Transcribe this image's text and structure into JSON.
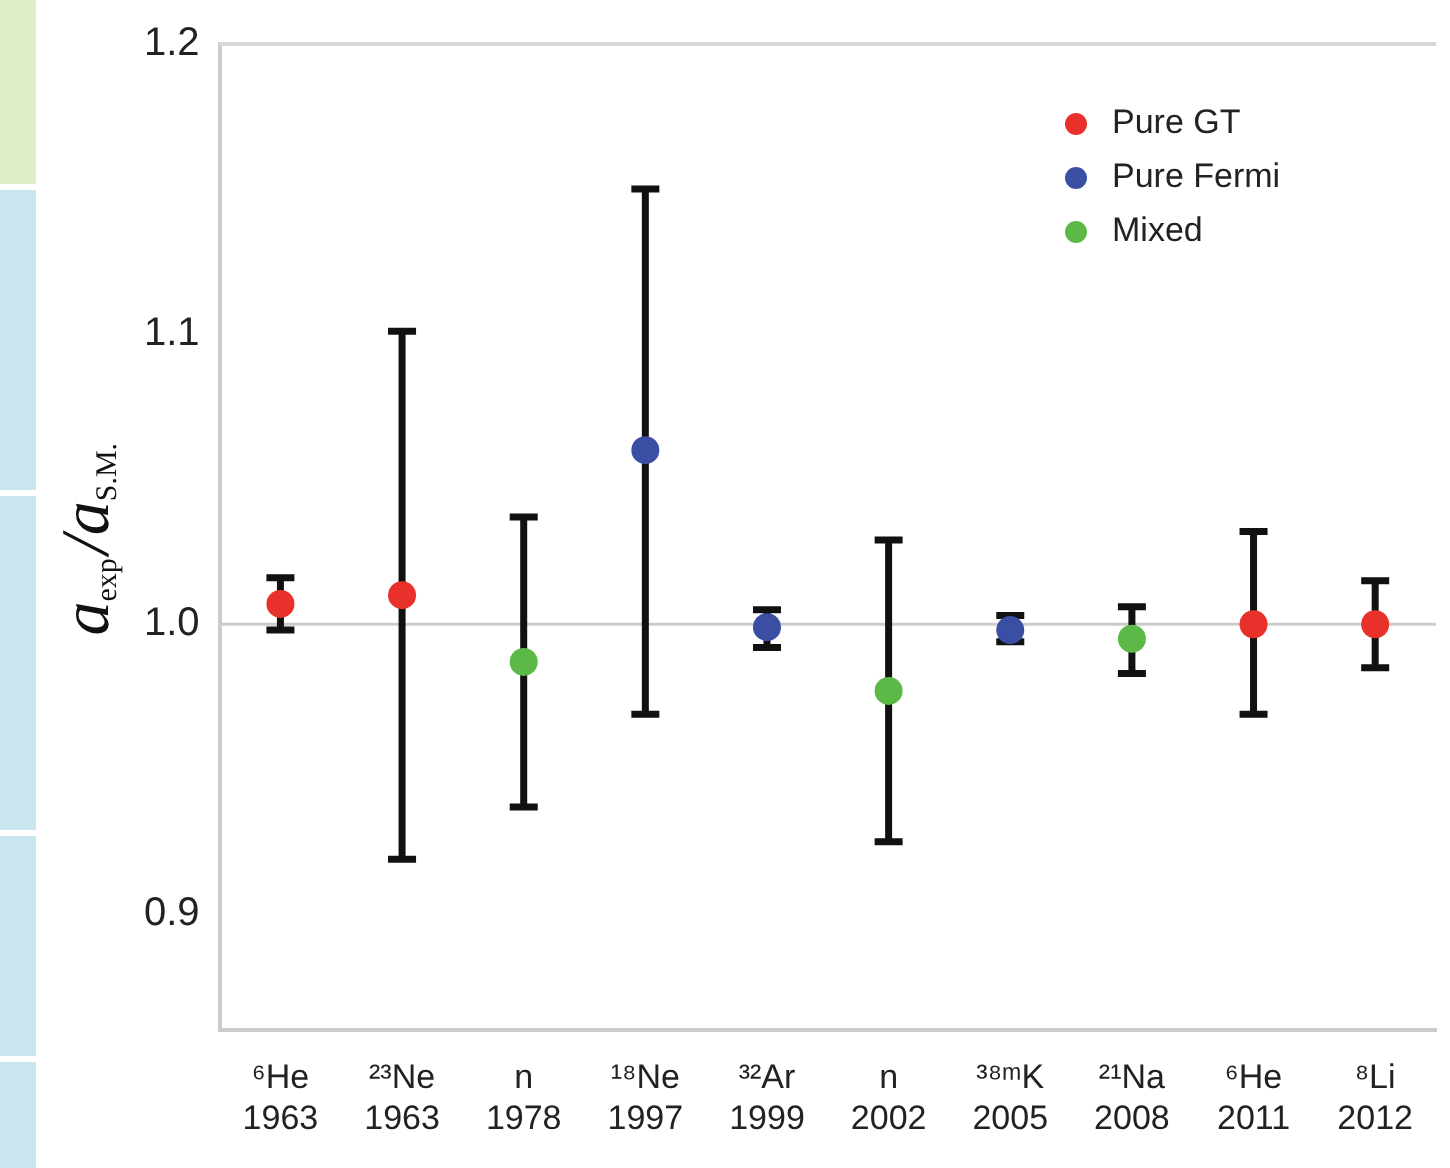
{
  "chart_data": {
    "type": "scatter",
    "ylabel": "a$_{exp}$/a$_{S.M.}$",
    "categories": [
      "⁶He\n1963",
      "²³Ne\n1963",
      "n\n1978",
      "¹⁸Ne\n1997",
      "³²Ar\n1999",
      "n\n2002",
      "³⁸ᵐK\n2005",
      "²¹Na\n2008",
      "⁶He\n2011",
      "⁸Li\n2012"
    ],
    "series": [
      {
        "name": "Pure GT",
        "color": "#e8312a",
        "values": [
          1.007,
          1.01,
          null,
          null,
          null,
          null,
          null,
          null,
          1.0,
          1.0
        ],
        "errors": [
          [
            0.998,
            1.016
          ],
          [
            0.919,
            1.101
          ],
          null,
          null,
          null,
          null,
          null,
          null,
          [
            0.969,
            1.032
          ],
          [
            0.985,
            1.015
          ]
        ]
      },
      {
        "name": "Pure Fermi",
        "color": "#3a4ea3",
        "values": [
          null,
          null,
          null,
          1.06,
          0.999,
          null,
          0.998,
          null,
          null,
          null
        ],
        "errors": [
          null,
          null,
          null,
          [
            0.969,
            1.15
          ],
          [
            0.992,
            1.005
          ],
          null,
          [
            0.994,
            1.003
          ],
          null,
          null,
          null
        ]
      },
      {
        "name": "Mixed",
        "color": "#5cb947",
        "values": [
          null,
          null,
          0.987,
          null,
          null,
          0.977,
          null,
          0.995,
          null,
          null
        ],
        "errors": [
          null,
          null,
          [
            0.937,
            1.037
          ],
          null,
          null,
          [
            0.925,
            1.029
          ],
          null,
          [
            0.983,
            1.006
          ],
          null,
          null
        ]
      }
    ],
    "ylim": [
      0.86,
      1.2
    ],
    "yticks": [
      0.9,
      {
        "value": 1,
        "label": "1.0"
      },
      1.1,
      1.2
    ],
    "ref_lines": [
      {
        "axis": "y",
        "value": 1.0,
        "color": "#cccccc"
      }
    ],
    "legend": "top right",
    "marker": "circle",
    "grid": false
  }
}
